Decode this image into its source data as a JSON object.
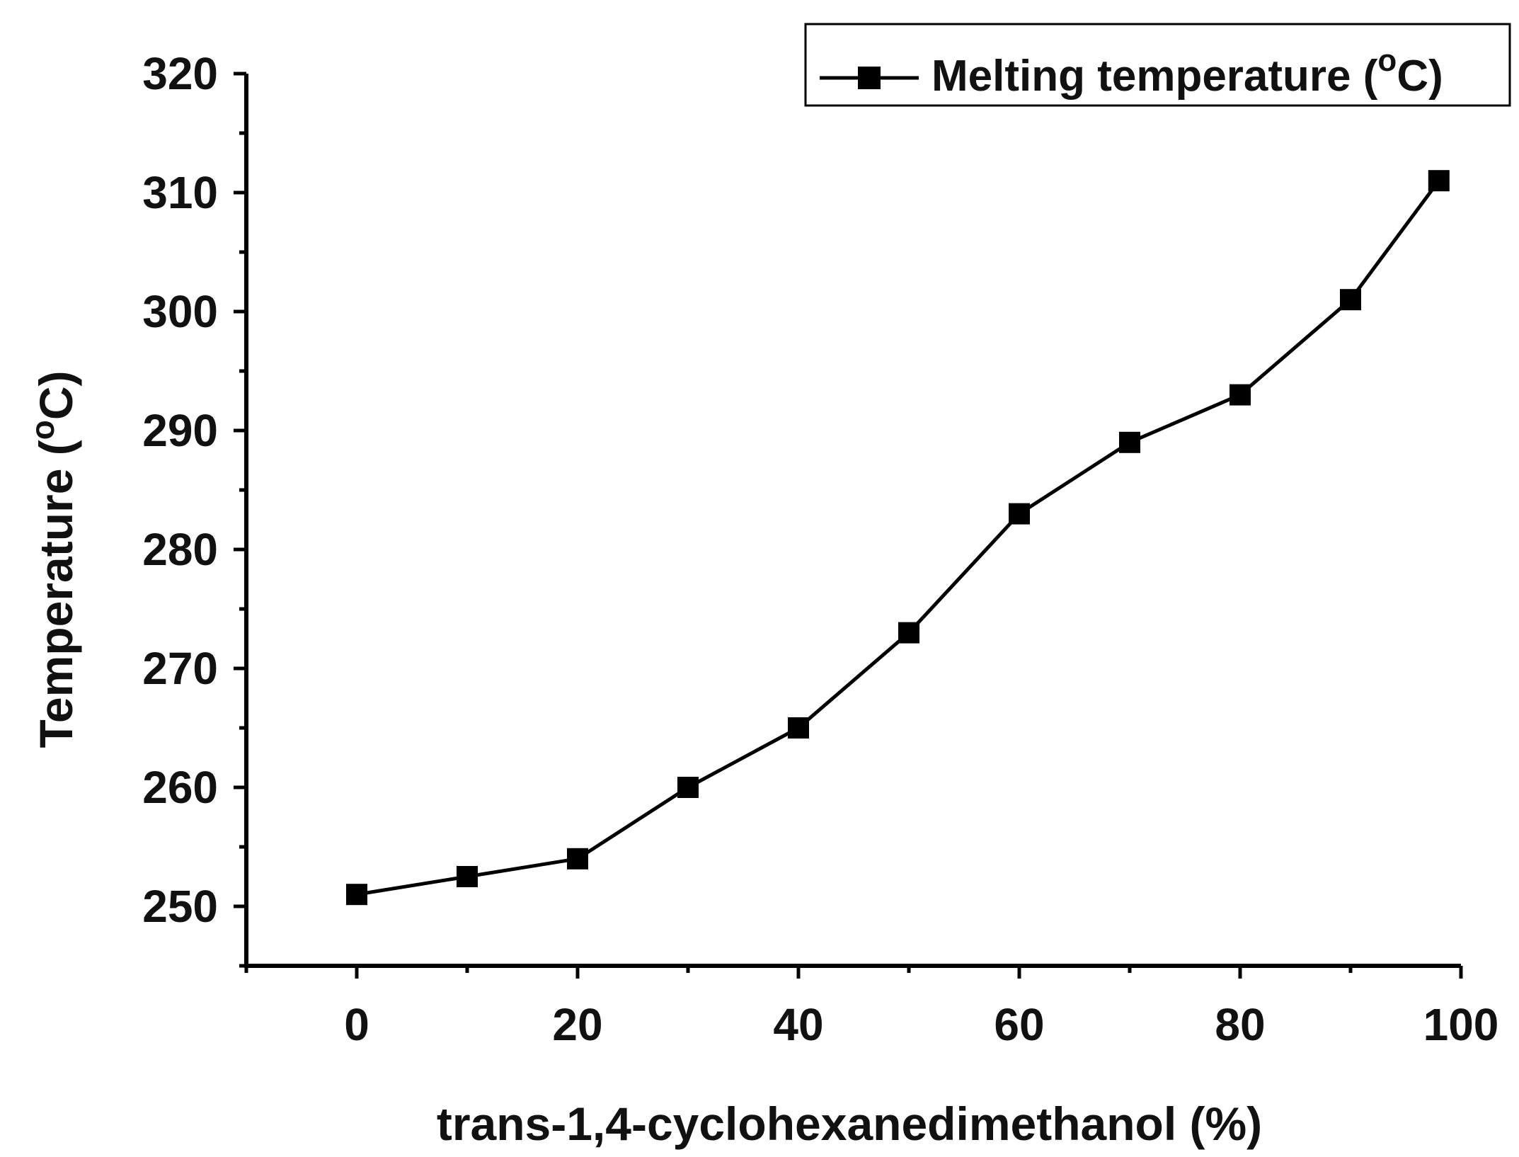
{
  "chart_data": {
    "type": "line",
    "title": "",
    "xlabel": "trans-1,4-cyclohexanedimethanol (%)",
    "ylabel_text": "Temperature (",
    "ylabel_sup": "o",
    "ylabel_end": "C)",
    "xlim": [
      -10,
      100
    ],
    "ylim": [
      245,
      320
    ],
    "xticks": [
      0,
      20,
      40,
      60,
      80,
      100
    ],
    "yticks": [
      250,
      260,
      270,
      280,
      290,
      300,
      310,
      320
    ],
    "x_minor_step": 10,
    "y_minor_step": 5,
    "grid": false,
    "legend_position": "top-right",
    "series": [
      {
        "name": "Melting temperature",
        "legend_text": "Melting temperature (",
        "legend_sup": "o",
        "legend_end": "C)",
        "marker": "square",
        "color": "#000000",
        "x": [
          0,
          10,
          20,
          30,
          40,
          50,
          60,
          70,
          80,
          90,
          98
        ],
        "y": [
          251,
          252.5,
          254,
          260,
          265,
          273,
          283,
          289,
          293,
          301,
          311
        ]
      }
    ]
  }
}
